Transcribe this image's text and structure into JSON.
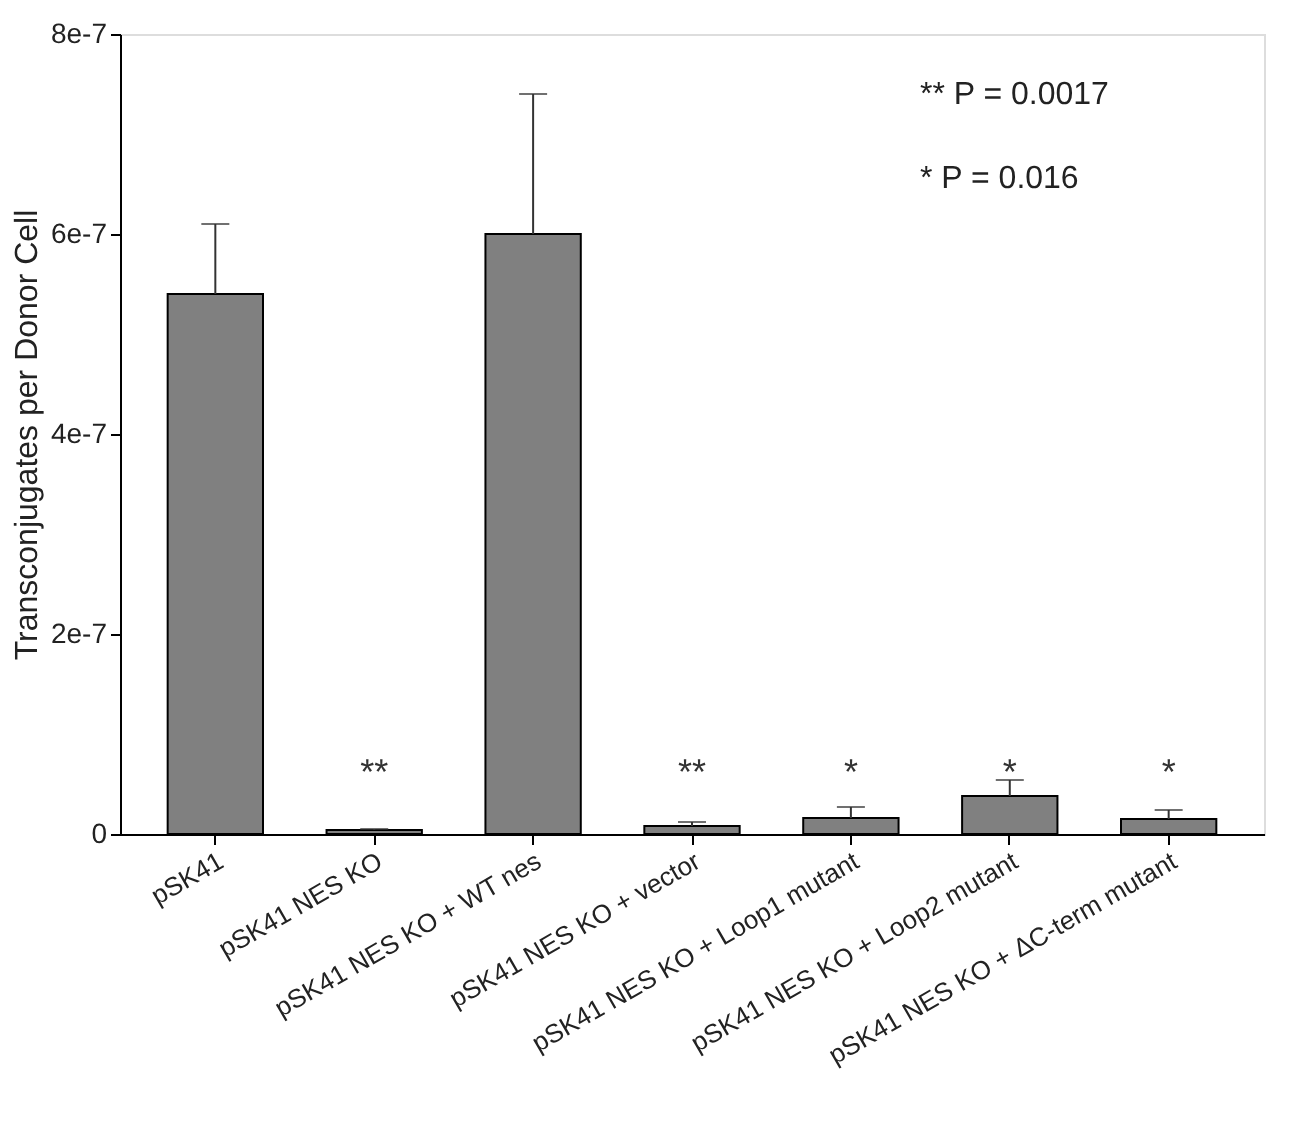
{
  "chart_data": {
    "type": "bar",
    "ylabel": "Transconjugates per Donor Cell",
    "categories": [
      "pSK41",
      "pSK41 NES KO",
      "pSK41 NES KO + WT nes",
      "pSK41 NES KO + vector",
      "pSK41 NES KO + Loop1 mutant",
      "pSK41 NES KO + Loop2 mutant",
      "pSK41 NES KO + ΔC-term mutant"
    ],
    "values": [
      5.4e-07,
      4e-09,
      6e-07,
      8e-09,
      1.6e-08,
      3.8e-08,
      1.5e-08
    ],
    "errors": [
      7e-08,
      1e-09,
      1.4e-07,
      4e-09,
      1.1e-08,
      1.6e-08,
      9e-09
    ],
    "value_labels": [
      null,
      "**",
      null,
      "**",
      "*",
      "*",
      "*"
    ],
    "color": "#808080",
    "ylim": [
      0,
      8e-07
    ],
    "yticks": [
      {
        "value": 0,
        "label": "0"
      },
      {
        "value": 2e-07,
        "label": "2e-7"
      },
      {
        "value": 4e-07,
        "label": "4e-7"
      },
      {
        "value": 6e-07,
        "label": "6e-7"
      },
      {
        "value": 8e-07,
        "label": "8e-7"
      }
    ],
    "grid": false,
    "annotations": [
      "** P = 0.0017",
      "*  P = 0.016"
    ]
  }
}
